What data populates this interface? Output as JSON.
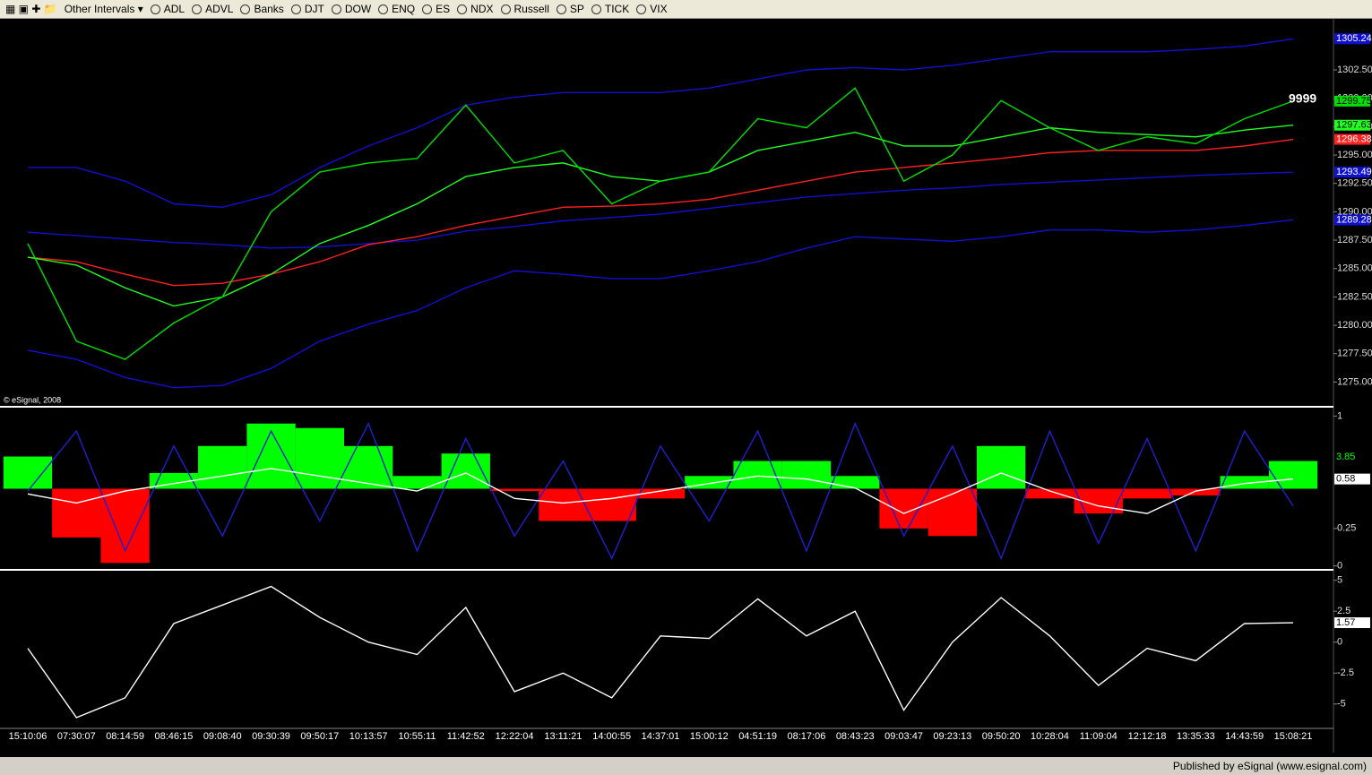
{
  "toolbar": {
    "items": [
      "Other Intervals ▾",
      "ADL",
      "ADVL",
      "Banks",
      "DJT",
      "DOW",
      "ENQ",
      "ES",
      "NDX",
      "Russell",
      "SP",
      "TICK",
      "VIX"
    ]
  },
  "footer": "Published by eSignal (www.esignal.com)",
  "chart_data": [
    {
      "type": "line",
      "copyright": "© eSignal, 2008",
      "annotation": "9999",
      "categories": [
        "15:10:06",
        "07:30:07",
        "08:14:59",
        "08:46:15",
        "09:08:40",
        "09:30:39",
        "09:50:17",
        "10:13:57",
        "10:55:11",
        "11:42:52",
        "12:22:04",
        "13:11:21",
        "14:00:55",
        "14:37:01",
        "15:00:12",
        "04:51:19",
        "08:17:06",
        "08:43:23",
        "09:03:47",
        "09:23:13",
        "09:50:20",
        "10:28:04",
        "11:09:04",
        "12:12:18",
        "13:35:33",
        "14:43:59",
        "15:08:21"
      ],
      "ylim": [
        1272.9,
        1307
      ],
      "yticks": [
        {
          "value": 1275,
          "label": "1275.00"
        },
        {
          "value": 1277.5,
          "label": "1277.50"
        },
        {
          "value": 1280,
          "label": "1280.00"
        },
        {
          "value": 1282.5,
          "label": "1282.50"
        },
        {
          "value": 1285,
          "label": "1285.00"
        },
        {
          "value": 1287.5,
          "label": "1287.50"
        },
        {
          "value": 1290,
          "label": "1290.00"
        },
        {
          "value": 1292.5,
          "label": "1292.50"
        },
        {
          "value": 1295,
          "label": "1295.00"
        },
        {
          "value": 1297.5,
          "label": "1297.50"
        },
        {
          "value": 1300,
          "label": "1300.00"
        },
        {
          "value": 1302.5,
          "label": "1302.50"
        }
      ],
      "series": [
        {
          "color": "#1010d0",
          "tag": "1305.24",
          "values": [
            1293.9,
            1293.9,
            1292.7,
            1290.7,
            1290.4,
            1291.5,
            1293.9,
            1295.8,
            1297.4,
            1299.4,
            1300.1,
            1300.5,
            1300.5,
            1300.5,
            1300.9,
            1301.7,
            1302.5,
            1302.7,
            1302.5,
            1302.9,
            1303.5,
            1304.1,
            1304.1,
            1304.1,
            1304.3,
            1304.6,
            1305.24
          ]
        },
        {
          "color": "#1010d0",
          "tag": "1293.49",
          "values": [
            1288.2,
            1287.9,
            1287.6,
            1287.3,
            1287.1,
            1286.8,
            1286.9,
            1287.2,
            1287.5,
            1288.3,
            1288.7,
            1289.2,
            1289.5,
            1289.8,
            1290.3,
            1290.8,
            1291.3,
            1291.6,
            1291.9,
            1292.1,
            1292.4,
            1292.6,
            1292.8,
            1293.0,
            1293.2,
            1293.35,
            1293.49
          ]
        },
        {
          "color": "#1010d0",
          "tag": "1289.28",
          "values": [
            1277.8,
            1277.0,
            1275.4,
            1274.5,
            1274.7,
            1276.2,
            1278.6,
            1280.1,
            1281.3,
            1283.3,
            1284.8,
            1284.5,
            1284.1,
            1284.1,
            1284.8,
            1285.6,
            1286.8,
            1287.8,
            1287.6,
            1287.4,
            1287.8,
            1288.4,
            1288.4,
            1288.2,
            1288.4,
            1288.8,
            1289.28
          ]
        },
        {
          "color": "#ff2020",
          "tag": "1296.38",
          "values": [
            1286.0,
            1285.6,
            1284.5,
            1283.5,
            1283.7,
            1284.5,
            1285.6,
            1287.1,
            1287.8,
            1288.8,
            1289.6,
            1290.4,
            1290.5,
            1290.7,
            1291.1,
            1291.9,
            1292.7,
            1293.5,
            1293.9,
            1294.3,
            1294.7,
            1295.2,
            1295.4,
            1295.4,
            1295.4,
            1295.8,
            1296.38
          ]
        },
        {
          "color": "#20ff20",
          "tag": "1297.63",
          "values": [
            1286.0,
            1285.3,
            1283.3,
            1281.7,
            1282.5,
            1284.5,
            1287.2,
            1288.8,
            1290.7,
            1293.1,
            1293.9,
            1294.3,
            1293.1,
            1292.7,
            1293.5,
            1295.4,
            1296.2,
            1297.0,
            1295.8,
            1295.8,
            1296.6,
            1297.4,
            1297.0,
            1296.8,
            1296.6,
            1297.2,
            1297.63
          ]
        },
        {
          "color": "#00e000",
          "tag": "1299.75",
          "values": [
            1287.2,
            1278.6,
            1277.0,
            1280.2,
            1282.5,
            1290.0,
            1293.5,
            1294.3,
            1294.7,
            1299.4,
            1294.3,
            1295.4,
            1290.7,
            1292.7,
            1293.5,
            1298.2,
            1297.4,
            1300.9,
            1292.7,
            1295.0,
            1299.8,
            1297.4,
            1295.4,
            1296.6,
            1296.0,
            1298.2,
            1299.75
          ]
        }
      ]
    },
    {
      "type": "histogram-line",
      "ylim": [
        -0.02,
        1.05
      ],
      "yticks": [
        0,
        0.25,
        1
      ],
      "annotation": "3.85",
      "up_color": "#00ff00",
      "down_color": "#ff0000",
      "histogram": [
        0.73,
        0.19,
        0.02,
        0.62,
        0.8,
        0.95,
        0.92,
        0.8,
        0.6,
        0.75,
        0.5,
        0.3,
        0.3,
        0.45,
        0.6,
        0.7,
        0.7,
        0.6,
        0.25,
        0.2,
        0.8,
        0.45,
        0.35,
        0.45,
        0.47,
        0.6,
        0.7
      ],
      "series": [
        {
          "color": "#2020d0",
          "values": [
            0.5,
            0.9,
            0.1,
            0.8,
            0.2,
            0.9,
            0.3,
            0.95,
            0.1,
            0.85,
            0.2,
            0.7,
            0.05,
            0.8,
            0.3,
            0.9,
            0.1,
            0.95,
            0.2,
            0.8,
            0.05,
            0.9,
            0.15,
            0.85,
            0.1,
            0.9,
            0.4
          ]
        },
        {
          "color": "#ffffff",
          "tag": "0.58",
          "values": [
            0.48,
            0.42,
            0.5,
            0.55,
            0.6,
            0.65,
            0.6,
            0.55,
            0.5,
            0.62,
            0.45,
            0.42,
            0.45,
            0.5,
            0.55,
            0.6,
            0.58,
            0.52,
            0.35,
            0.48,
            0.62,
            0.5,
            0.4,
            0.35,
            0.5,
            0.55,
            0.58
          ]
        }
      ]
    },
    {
      "type": "line",
      "ylim": [
        -6.9,
        5.7
      ],
      "yticks": [
        5,
        2.5,
        0,
        -2.5,
        -5
      ],
      "series": [
        {
          "color": "#ffffff",
          "tag": "1.57",
          "values": [
            -0.5,
            -6.1,
            -4.5,
            1.5,
            3.0,
            4.5,
            2.0,
            0.0,
            -1.0,
            2.8,
            -4.0,
            -2.5,
            -4.5,
            0.5,
            0.3,
            3.5,
            0.5,
            2.5,
            -5.5,
            0.0,
            3.6,
            0.5,
            -3.5,
            -0.5,
            -1.5,
            1.5,
            1.57
          ]
        }
      ]
    }
  ]
}
